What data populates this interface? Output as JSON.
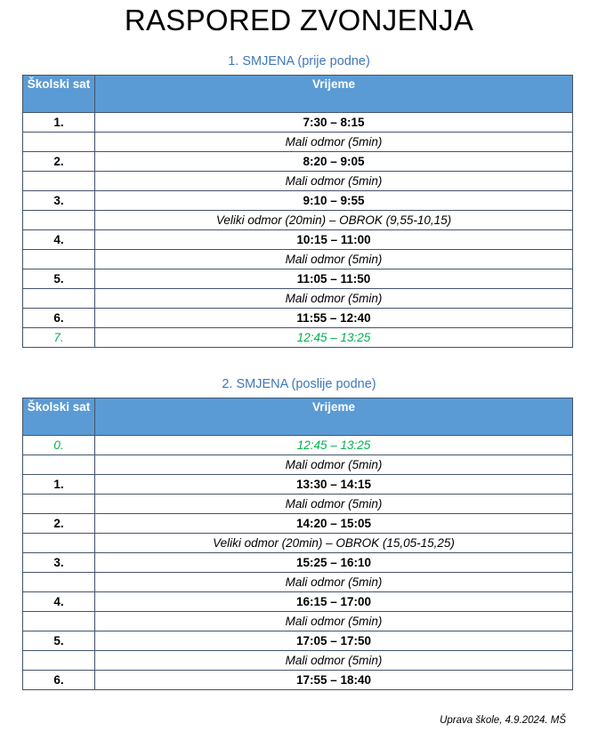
{
  "title": "RASPORED ZVONJENJA",
  "headers": {
    "col1": "Školski sat",
    "col2": "Vrijeme"
  },
  "accent_colors": {
    "header_fill": "#5b9bd5",
    "section_title": "#3f78b8",
    "highlight": "#00b050"
  },
  "shifts": [
    {
      "title": "1.   SMJENA (prije podne)",
      "rows": [
        {
          "type": "lesson",
          "sat": "1.",
          "time": "7:30 – 8:15"
        },
        {
          "type": "break",
          "sat": "",
          "time": "Mali odmor (5min)"
        },
        {
          "type": "lesson",
          "sat": "2.",
          "time": "8:20 – 9:05"
        },
        {
          "type": "break",
          "sat": "",
          "time": "Mali odmor (5min)"
        },
        {
          "type": "lesson",
          "sat": "3.",
          "time": "9:10 – 9:55"
        },
        {
          "type": "break",
          "sat": "",
          "time": "Veliki odmor (20min) – OBROK (9,55-10,15)"
        },
        {
          "type": "lesson",
          "sat": "4.",
          "time": "10:15 – 11:00"
        },
        {
          "type": "break",
          "sat": "",
          "time": "Mali odmor (5min)"
        },
        {
          "type": "lesson",
          "sat": "5.",
          "time": "11:05 – 11:50"
        },
        {
          "type": "break",
          "sat": "",
          "time": "Mali odmor (5min)"
        },
        {
          "type": "lesson",
          "sat": "6.",
          "time": "11:55 – 12:40"
        },
        {
          "type": "green",
          "sat": "7.",
          "time": "12:45 – 13:25"
        }
      ]
    },
    {
      "title": "2.   SMJENA (poslije podne)",
      "rows": [
        {
          "type": "green",
          "sat": "0.",
          "time": "12:45 – 13:25"
        },
        {
          "type": "break",
          "sat": "",
          "time": "Mali odmor (5min)"
        },
        {
          "type": "lesson",
          "sat": "1.",
          "time": "13:30 – 14:15"
        },
        {
          "type": "break",
          "sat": "",
          "time": "Mali odmor (5min)"
        },
        {
          "type": "lesson",
          "sat": "2.",
          "time": "14:20 – 15:05"
        },
        {
          "type": "break",
          "sat": "",
          "time": "Veliki odmor (20min) – OBROK (15,05-15,25)"
        },
        {
          "type": "lesson",
          "sat": "3.",
          "time": "15:25 – 16:10"
        },
        {
          "type": "break",
          "sat": "",
          "time": "Mali odmor (5min)"
        },
        {
          "type": "lesson",
          "sat": "4.",
          "time": "16:15 – 17:00"
        },
        {
          "type": "break",
          "sat": "",
          "time": "Mali odmor (5min)"
        },
        {
          "type": "lesson",
          "sat": "5.",
          "time": "17:05 – 17:50"
        },
        {
          "type": "break",
          "sat": "",
          "time": "Mali odmor (5min)"
        },
        {
          "type": "lesson",
          "sat": "6.",
          "time": "17:55 – 18:40"
        }
      ]
    }
  ],
  "footer": "Uprava škole, 4.9.2024. MŠ"
}
